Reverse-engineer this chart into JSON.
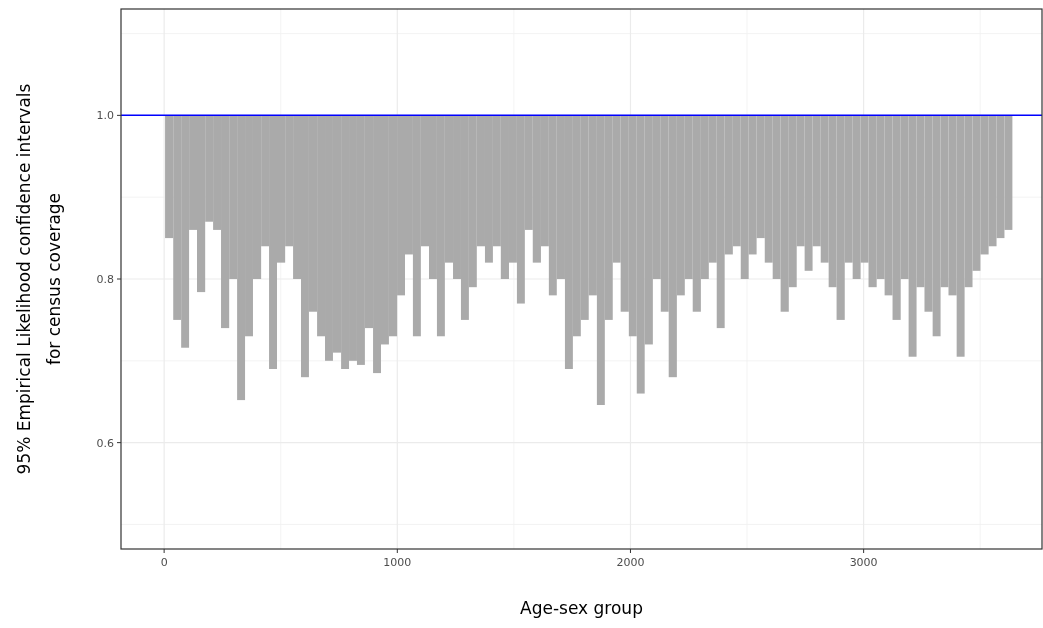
{
  "chart_data": {
    "type": "bar",
    "xlabel": "Age-sex group",
    "ylabel": "95% Empirical Likelihood confidence intervals\nfor census coverage",
    "x": [
      4,
      39,
      73,
      107,
      141,
      176,
      210,
      244,
      279,
      313,
      347,
      381,
      416,
      450,
      484,
      519,
      553,
      587,
      621,
      656,
      690,
      724,
      759,
      793,
      827,
      861,
      896,
      930,
      964,
      999,
      1033,
      1067,
      1101,
      1136,
      1170,
      1204,
      1239,
      1273,
      1307,
      1341,
      1376,
      1410,
      1444,
      1479,
      1513,
      1547,
      1581,
      1616,
      1650,
      1684,
      1719,
      1753,
      1787,
      1821,
      1856,
      1890,
      1924,
      1958,
      1993,
      2027,
      2061,
      2096,
      2130,
      2164,
      2199,
      2233,
      2267,
      2302,
      2336,
      2370,
      2404,
      2439,
      2473,
      2507,
      2541,
      2576,
      2610,
      2644,
      2679,
      2713,
      2747,
      2781,
      2816,
      2850,
      2884,
      2919,
      2953,
      2987,
      3021,
      3056,
      3090,
      3124,
      3159,
      3193,
      3227,
      3261,
      3296,
      3330,
      3364,
      3399,
      3433,
      3467,
      3501,
      3536,
      3570,
      3604
    ],
    "base": [
      0.85,
      0.75,
      0.716,
      0.86,
      0.784,
      0.87,
      0.86,
      0.74,
      0.8,
      0.652,
      0.73,
      0.8,
      0.84,
      0.69,
      0.82,
      0.84,
      0.8,
      0.68,
      0.76,
      0.73,
      0.7,
      0.71,
      0.69,
      0.7,
      0.695,
      0.74,
      0.685,
      0.72,
      0.73,
      0.78,
      0.83,
      0.73,
      0.84,
      0.8,
      0.73,
      0.82,
      0.8,
      0.75,
      0.79,
      0.84,
      0.82,
      0.84,
      0.8,
      0.82,
      0.77,
      0.86,
      0.82,
      0.84,
      0.78,
      0.8,
      0.69,
      0.73,
      0.75,
      0.78,
      0.646,
      0.75,
      0.82,
      0.76,
      0.73,
      0.66,
      0.72,
      0.8,
      0.76,
      0.68,
      0.78,
      0.8,
      0.76,
      0.8,
      0.82,
      0.74,
      0.83,
      0.84,
      0.8,
      0.83,
      0.85,
      0.82,
      0.8,
      0.76,
      0.79,
      0.84,
      0.81,
      0.84,
      0.82,
      0.79,
      0.75,
      0.82,
      0.8,
      0.82,
      0.79,
      0.8,
      0.78,
      0.75,
      0.8,
      0.705,
      0.79,
      0.76,
      0.73,
      0.79,
      0.78,
      0.705,
      0.79,
      0.81,
      0.83,
      0.84,
      0.85,
      0.86
    ],
    "values": [
      0.15,
      0.25,
      0.284,
      0.14,
      0.216,
      0.13,
      0.14,
      0.26,
      0.2,
      0.348,
      0.27,
      0.2,
      0.16,
      0.31,
      0.18,
      0.16,
      0.2,
      0.32,
      0.24,
      0.27,
      0.3,
      0.29,
      0.31,
      0.3,
      0.305,
      0.26,
      0.315,
      0.28,
      0.27,
      0.22,
      0.17,
      0.27,
      0.16,
      0.2,
      0.27,
      0.18,
      0.2,
      0.25,
      0.21,
      0.16,
      0.18,
      0.16,
      0.2,
      0.18,
      0.23,
      0.14,
      0.18,
      0.16,
      0.22,
      0.2,
      0.31,
      0.27,
      0.25,
      0.22,
      0.354,
      0.25,
      0.18,
      0.24,
      0.27,
      0.34,
      0.28,
      0.2,
      0.24,
      0.32,
      0.22,
      0.2,
      0.24,
      0.2,
      0.18,
      0.26,
      0.17,
      0.16,
      0.2,
      0.17,
      0.15,
      0.18,
      0.2,
      0.24,
      0.21,
      0.16,
      0.19,
      0.16,
      0.18,
      0.21,
      0.25,
      0.18,
      0.2,
      0.18,
      0.21,
      0.2,
      0.22,
      0.25,
      0.2,
      0.295,
      0.21,
      0.24,
      0.27,
      0.21,
      0.22,
      0.295,
      0.21,
      0.19,
      0.17,
      0.16,
      0.15,
      0.14
    ],
    "color": "#aaaaaa",
    "xlim": [
      -185,
      3765
    ],
    "xticks": [
      0,
      1000,
      2000,
      3000
    ],
    "ylim": [
      0.47,
      1.13
    ],
    "yticks": [
      {
        "value": 0.6,
        "label": "0.6"
      },
      {
        "value": 0.8,
        "label": "0.8"
      },
      {
        "value": 1,
        "label": "1.0"
      }
    ],
    "ref_lines": [
      {
        "axis": "y",
        "value": 1,
        "color": "#0000ff"
      }
    ],
    "grid": true
  }
}
